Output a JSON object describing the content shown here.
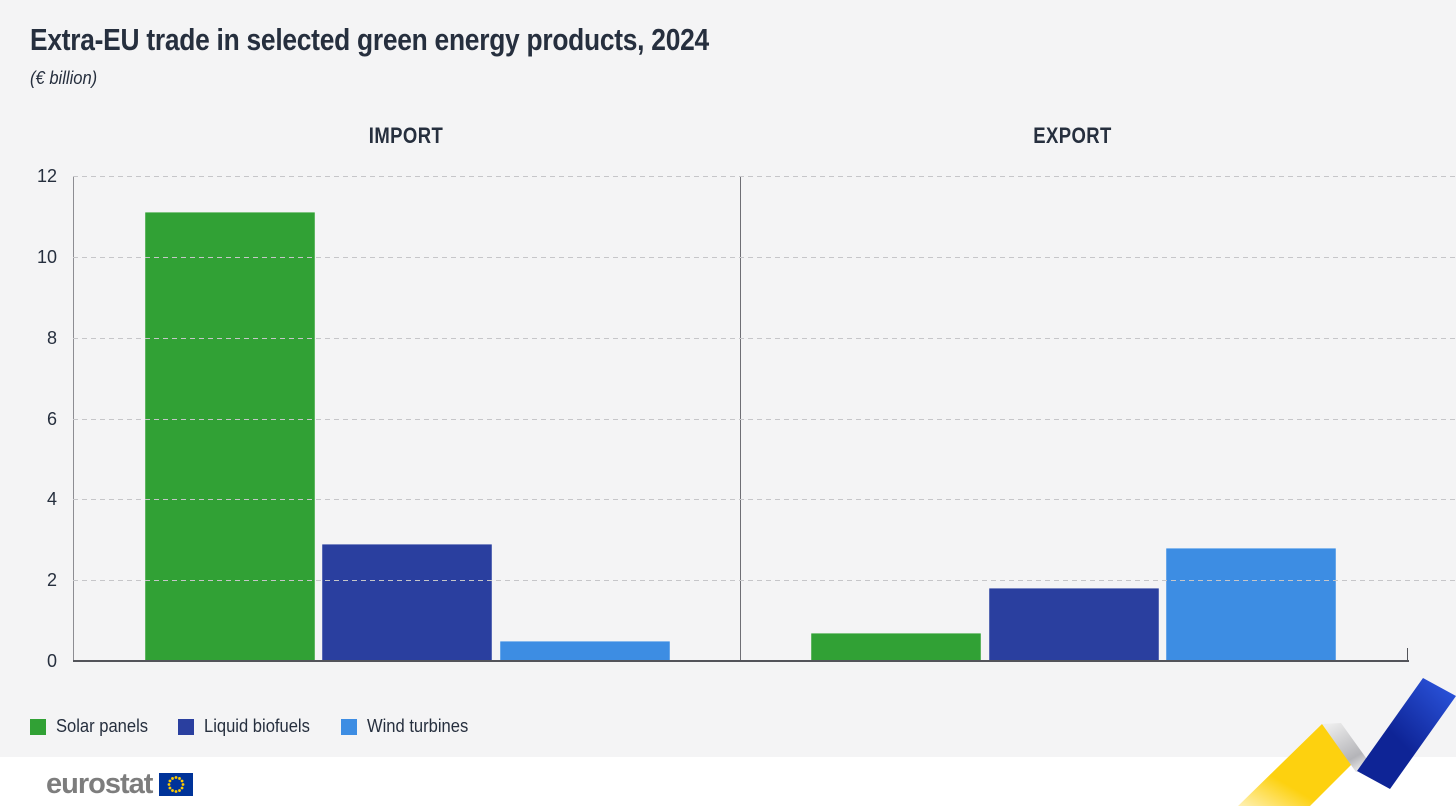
{
  "header": {
    "title": "Extra-EU trade in selected green energy products, 2024",
    "subtitle": "(€ billion)"
  },
  "chart_data": {
    "type": "bar",
    "unit": "€ billion",
    "title": "Extra-EU trade in selected green energy products, 2024",
    "panels": [
      {
        "label": "IMPORT",
        "values": [
          11.1,
          2.9,
          0.5
        ]
      },
      {
        "label": "EXPORT",
        "values": [
          0.7,
          1.8,
          2.8
        ]
      }
    ],
    "categories": [
      "Solar panels",
      "Liquid biofuels",
      "Wind turbines"
    ],
    "series_colors": [
      "#31a135",
      "#2a3f9f",
      "#3d8de3"
    ],
    "ylim": [
      0,
      12
    ],
    "yticks": [
      0,
      2,
      4,
      6,
      8,
      10,
      12
    ],
    "grid": "horizontal-dashed",
    "legend_position": "bottom-left"
  },
  "legend": {
    "items": [
      {
        "label": "Solar panels",
        "color": "#31a135"
      },
      {
        "label": "Liquid biofuels",
        "color": "#2a3f9f"
      },
      {
        "label": "Wind turbines",
        "color": "#3d8de3"
      }
    ]
  },
  "footer": {
    "logo_text": "eurostat"
  },
  "colors": {
    "canvas_bg": "#f4f4f5",
    "text": "#262f3e",
    "axis": "#53545a",
    "grid": "#c6c6c9",
    "divider": "#6e6e74",
    "logo_gray": "#7d7d7d",
    "flag_blue": "#003399",
    "star_yellow": "#ffcc00",
    "ribbon_yellow": "#fdd10f",
    "ribbon_gray_light": "#ececec",
    "ribbon_gray_dark": "#b4b4b8",
    "ribbon_gray_fade": "#f5f5f5",
    "ribbon_blue_bright": "#2e59e3",
    "ribbon_blue_dark": "#0e2496"
  }
}
